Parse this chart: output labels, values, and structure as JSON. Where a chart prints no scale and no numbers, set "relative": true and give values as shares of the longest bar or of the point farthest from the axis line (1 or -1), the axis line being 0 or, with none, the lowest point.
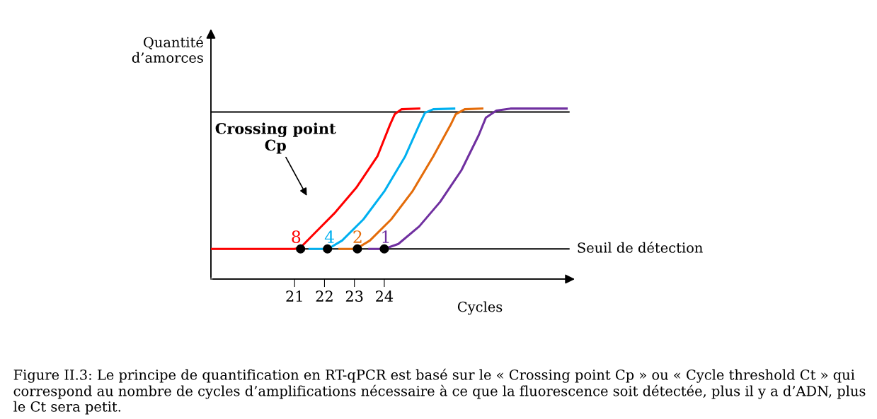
{
  "chart_data": {
    "type": "line",
    "relative": true,
    "xlabel": "Cycles",
    "ylabel": "Quantité\nd’amorces",
    "xlim": [
      18.2,
      30.2
    ],
    "xticks": [
      21,
      22,
      23,
      24
    ],
    "grid": false,
    "legend": false,
    "marker": "none",
    "line_style": "solid",
    "series": [
      {
        "name": "8",
        "color": "#ff0000",
        "x": [
          18.2,
          19.5,
          20.5,
          21.0,
          21.2,
          21.66,
          22.36,
          23.06,
          23.77,
          24.19,
          24.35,
          24.58,
          25.17
        ],
        "values": [
          0.177,
          0.177,
          0.177,
          0.177,
          0.185,
          0.267,
          0.391,
          0.535,
          0.72,
          0.905,
          0.967,
          0.996,
          1.0
        ]
      },
      {
        "name": "4",
        "color": "#00b0f0",
        "x": [
          21.5,
          22.12,
          22.59,
          23.3,
          24.0,
          24.7,
          25.17,
          25.36,
          25.64,
          26.34
        ],
        "values": [
          0.177,
          0.177,
          0.226,
          0.35,
          0.514,
          0.72,
          0.905,
          0.975,
          0.996,
          1.0
        ]
      },
      {
        "name": "2",
        "color": "#e46c0a",
        "x": [
          22.5,
          23.06,
          23.52,
          24.23,
          24.94,
          25.64,
          26.22,
          26.39,
          26.69,
          27.28
        ],
        "values": [
          0.177,
          0.177,
          0.226,
          0.35,
          0.514,
          0.72,
          0.905,
          0.967,
          0.996,
          1.0
        ]
      },
      {
        "name": "1",
        "color": "#7030a0",
        "x": [
          23.5,
          24.0,
          24.47,
          25.17,
          25.87,
          26.58,
          27.16,
          27.4,
          27.75,
          28.22,
          30.1
        ],
        "values": [
          0.177,
          0.177,
          0.206,
          0.309,
          0.453,
          0.638,
          0.844,
          0.947,
          0.988,
          1.0,
          1.0
        ]
      },
      {
        "type": "scatter",
        "color": "#000000",
        "marker": "circle",
        "x": [
          21.2,
          22.1,
          23.1,
          24.0
        ],
        "values": [
          0.177,
          0.177,
          0.177,
          0.177
        ]
      }
    ],
    "ref_lines": [
      {
        "axis": "y",
        "value": 0.177,
        "label": "Seuil de détection",
        "color": "#000000"
      },
      {
        "axis": "y",
        "value": 0.98,
        "color": "#000000"
      }
    ],
    "annotations": [
      "Crossing point\nCp",
      "Figure II.3: Le principe de quantification en RT-qPCR est basé sur le « Crossing point Cp » ou « Cycle threshold Ct » qui correspond au nombre de cycles d’amplifications nécessaire à ce que la fluorescence soit détectée, plus il y a d’ADN, plus le Ct sera petit."
    ]
  }
}
